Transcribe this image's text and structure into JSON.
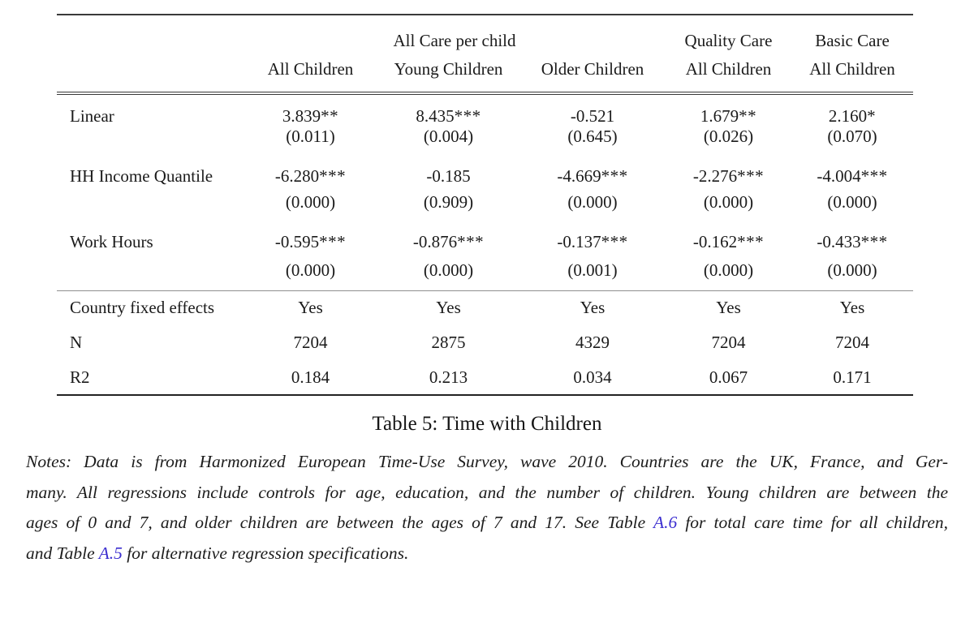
{
  "table": {
    "header": {
      "group_headers": [
        {
          "label": "All Care per child",
          "span": 3
        },
        {
          "label": "Quality Care",
          "span": 1
        },
        {
          "label": "Basic Care",
          "span": 1
        }
      ],
      "column_headers": [
        "All Children",
        "Young Children",
        "Older Children",
        "All Children",
        "All Children"
      ]
    },
    "rows": [
      {
        "label": "Linear",
        "estimates": [
          "3.839",
          "8.435",
          "-0.521",
          "1.679",
          "2.160"
        ],
        "stars": [
          "**",
          "***",
          "",
          "**",
          "*"
        ],
        "pvalues": [
          "(0.011)",
          "(0.004)",
          "(0.645)",
          "(0.026)",
          "(0.070)"
        ]
      },
      {
        "label": "HH Income Quantile",
        "estimates": [
          "-6.280",
          "-0.185",
          "-4.669",
          "-2.276",
          "-4.004"
        ],
        "stars": [
          "***",
          "",
          "***",
          "***",
          "***"
        ],
        "pvalues": [
          "(0.000)",
          "(0.909)",
          "(0.000)",
          "(0.000)",
          "(0.000)"
        ]
      },
      {
        "label": "Work Hours",
        "estimates": [
          "-0.595",
          "-0.876",
          "-0.137",
          "-0.162",
          "-0.433"
        ],
        "stars": [
          "***",
          "***",
          "***",
          "***",
          "***"
        ],
        "pvalues": [
          "(0.000)",
          "(0.000)",
          "(0.001)",
          "(0.000)",
          "(0.000)"
        ]
      }
    ],
    "summary_rows": [
      {
        "label": "Country fixed effects",
        "values": [
          "Yes",
          "Yes",
          "Yes",
          "Yes",
          "Yes"
        ]
      },
      {
        "label": "N",
        "values": [
          "7204",
          "2875",
          "4329",
          "7204",
          "7204"
        ]
      },
      {
        "label": "R2",
        "values": [
          "0.184",
          "0.213",
          "0.034",
          "0.067",
          "0.171"
        ]
      }
    ]
  },
  "caption": "Table 5: Time with Children",
  "notes": {
    "line1": "Notes: Data is from Harmonized European Time-Use Survey, wave 2010. Countries are the UK, France, and Ger-",
    "line2": "many. All regressions include controls for age, education, and the number of children. Young children are between the",
    "line3_pre": "ages of 0 and 7, and older children are between the ages of 7 and 17. See Table ",
    "line3_link": "A.6",
    "line3_post": " for total care time for all children,",
    "line4_pre": "and Table ",
    "line4_link": "A.5",
    "line4_post": " for alternative regression specifications."
  }
}
